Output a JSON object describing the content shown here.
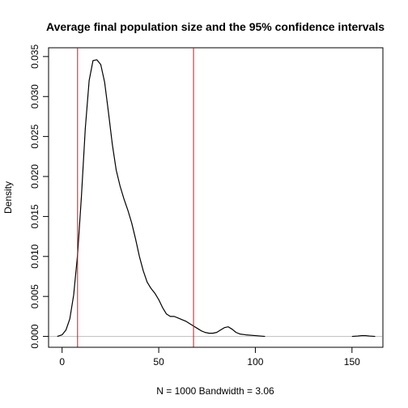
{
  "chart_data": {
    "type": "line",
    "title": "Average final population size and the 95% confidence intervals",
    "xlabel": "N = 1000   Bandwidth = 3.06",
    "ylabel": "Density",
    "xlim": [
      -7,
      166
    ],
    "ylim": [
      -0.00136,
      0.0361
    ],
    "x_ticks": [
      0,
      50,
      100,
      150
    ],
    "x_tick_labels": [
      "0",
      "50",
      "100",
      "150"
    ],
    "y_ticks": [
      0,
      0.005,
      0.01,
      0.015,
      0.02,
      0.025,
      0.03,
      0.035
    ],
    "y_tick_labels": [
      "0.000",
      "0.005",
      "0.010",
      "0.015",
      "0.020",
      "0.025",
      "0.030",
      "0.035"
    ],
    "grid": false,
    "zero_line": 0,
    "colors": {
      "curve": "#000000",
      "ci_lines": "#ff0000",
      "zero_line": "#bebebe"
    },
    "series": [
      {
        "x": [
          -2.5,
          0,
          2,
          4,
          6,
          8,
          10,
          12,
          14,
          16,
          18,
          20,
          22,
          24,
          26,
          28,
          30,
          32,
          34,
          36,
          38,
          40,
          42,
          44,
          46,
          48,
          50,
          52,
          54,
          56,
          58,
          60,
          62,
          64,
          66,
          68,
          70,
          72,
          74,
          76,
          78,
          80,
          82,
          84,
          86,
          88,
          90,
          92,
          95,
          100,
          105
        ],
        "y": [
          0.0,
          0.0002,
          0.0008,
          0.0022,
          0.0052,
          0.0102,
          0.0175,
          0.026,
          0.032,
          0.0345,
          0.0346,
          0.034,
          0.0318,
          0.028,
          0.024,
          0.0208,
          0.0188,
          0.0172,
          0.0158,
          0.0142,
          0.0122,
          0.01,
          0.0082,
          0.0068,
          0.006,
          0.0054,
          0.0046,
          0.0036,
          0.0028,
          0.0025,
          0.0025,
          0.0023,
          0.0021,
          0.0019,
          0.0016,
          0.0013,
          0.001,
          0.0007,
          0.0005,
          0.0004,
          0.0004,
          0.0005,
          0.0008,
          0.0011,
          0.0012,
          0.0009,
          0.0005,
          0.0003,
          0.0002,
          0.0001,
          0.0
        ],
        "color": "#000000"
      },
      {
        "x": [
          150,
          153,
          155,
          157,
          159,
          162
        ],
        "y": [
          0.0,
          5e-05,
          0.0001,
          0.0001,
          5e-05,
          0.0
        ],
        "color": "#000000"
      }
    ],
    "vlines": [
      {
        "x": 8,
        "color": "#ff0000"
      },
      {
        "x": 68,
        "color": "#ff0000"
      }
    ]
  }
}
